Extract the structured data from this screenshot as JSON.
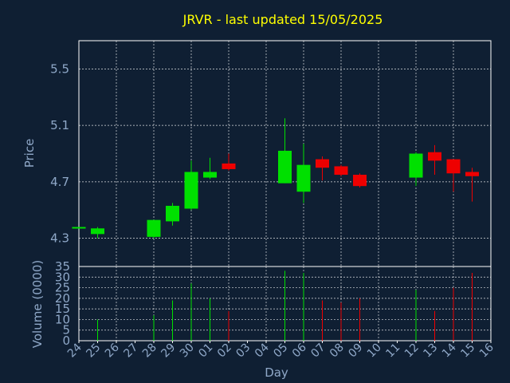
{
  "chart_data": {
    "type": "candlestick",
    "title": "JRVR - last updated 15/05/2025",
    "xlabel": "Day",
    "colors": {
      "up": "#00e000",
      "down": "#ee0000",
      "background": "#0f1f33",
      "title": "#ffff00",
      "axis_text": "#8fa8c8"
    },
    "x_ticks": [
      "24",
      "25",
      "26",
      "27",
      "28",
      "29",
      "30",
      "01",
      "02",
      "03",
      "04",
      "05",
      "06",
      "07",
      "08",
      "09",
      "10",
      "11",
      "12",
      "13",
      "14",
      "15",
      "16"
    ],
    "price_panel": {
      "ylabel": "Price",
      "ylim": [
        4.1,
        5.7
      ],
      "yticks": [
        4.3,
        4.7,
        5.1,
        5.5
      ],
      "grid": true
    },
    "volume_panel": {
      "ylabel": "Volume (0000)",
      "ylim": [
        0,
        35
      ],
      "yticks": [
        0,
        5,
        10,
        15,
        20,
        25,
        30,
        35
      ],
      "grid": true
    },
    "candles": [
      {
        "day": "24",
        "open": 4.37,
        "high": 4.38,
        "low": 4.37,
        "close": 4.38,
        "volume": 0
      },
      {
        "day": "25",
        "open": 4.33,
        "high": 4.38,
        "low": 4.3,
        "close": 4.37,
        "volume": 10
      },
      {
        "day": "28",
        "open": 4.31,
        "high": 4.43,
        "low": 4.3,
        "close": 4.43,
        "volume": 12
      },
      {
        "day": "29",
        "open": 4.42,
        "high": 4.55,
        "low": 4.39,
        "close": 4.53,
        "volume": 19
      },
      {
        "day": "30",
        "open": 4.51,
        "high": 4.85,
        "low": 4.5,
        "close": 4.77,
        "volume": 27
      },
      {
        "day": "01",
        "open": 4.73,
        "high": 4.87,
        "low": 4.72,
        "close": 4.77,
        "volume": 20
      },
      {
        "day": "02",
        "open": 4.83,
        "high": 4.9,
        "low": 4.78,
        "close": 4.79,
        "volume": 14
      },
      {
        "day": "05",
        "open": 4.69,
        "high": 5.15,
        "low": 4.69,
        "close": 4.92,
        "volume": 33
      },
      {
        "day": "06",
        "open": 4.63,
        "high": 4.97,
        "low": 4.55,
        "close": 4.82,
        "volume": 32
      },
      {
        "day": "07",
        "open": 4.86,
        "high": 4.88,
        "low": 4.71,
        "close": 4.8,
        "volume": 19
      },
      {
        "day": "08",
        "open": 4.81,
        "high": 4.82,
        "low": 4.74,
        "close": 4.75,
        "volume": 18
      },
      {
        "day": "09",
        "open": 4.75,
        "high": 4.76,
        "low": 4.66,
        "close": 4.67,
        "volume": 20
      },
      {
        "day": "12",
        "open": 4.73,
        "high": 4.91,
        "low": 4.67,
        "close": 4.9,
        "volume": 24
      },
      {
        "day": "13",
        "open": 4.91,
        "high": 4.96,
        "low": 4.75,
        "close": 4.85,
        "volume": 14
      },
      {
        "day": "14",
        "open": 4.86,
        "high": 4.86,
        "low": 4.63,
        "close": 4.76,
        "volume": 25
      },
      {
        "day": "15",
        "open": 4.77,
        "high": 4.8,
        "low": 4.56,
        "close": 4.74,
        "volume": 32
      }
    ]
  }
}
